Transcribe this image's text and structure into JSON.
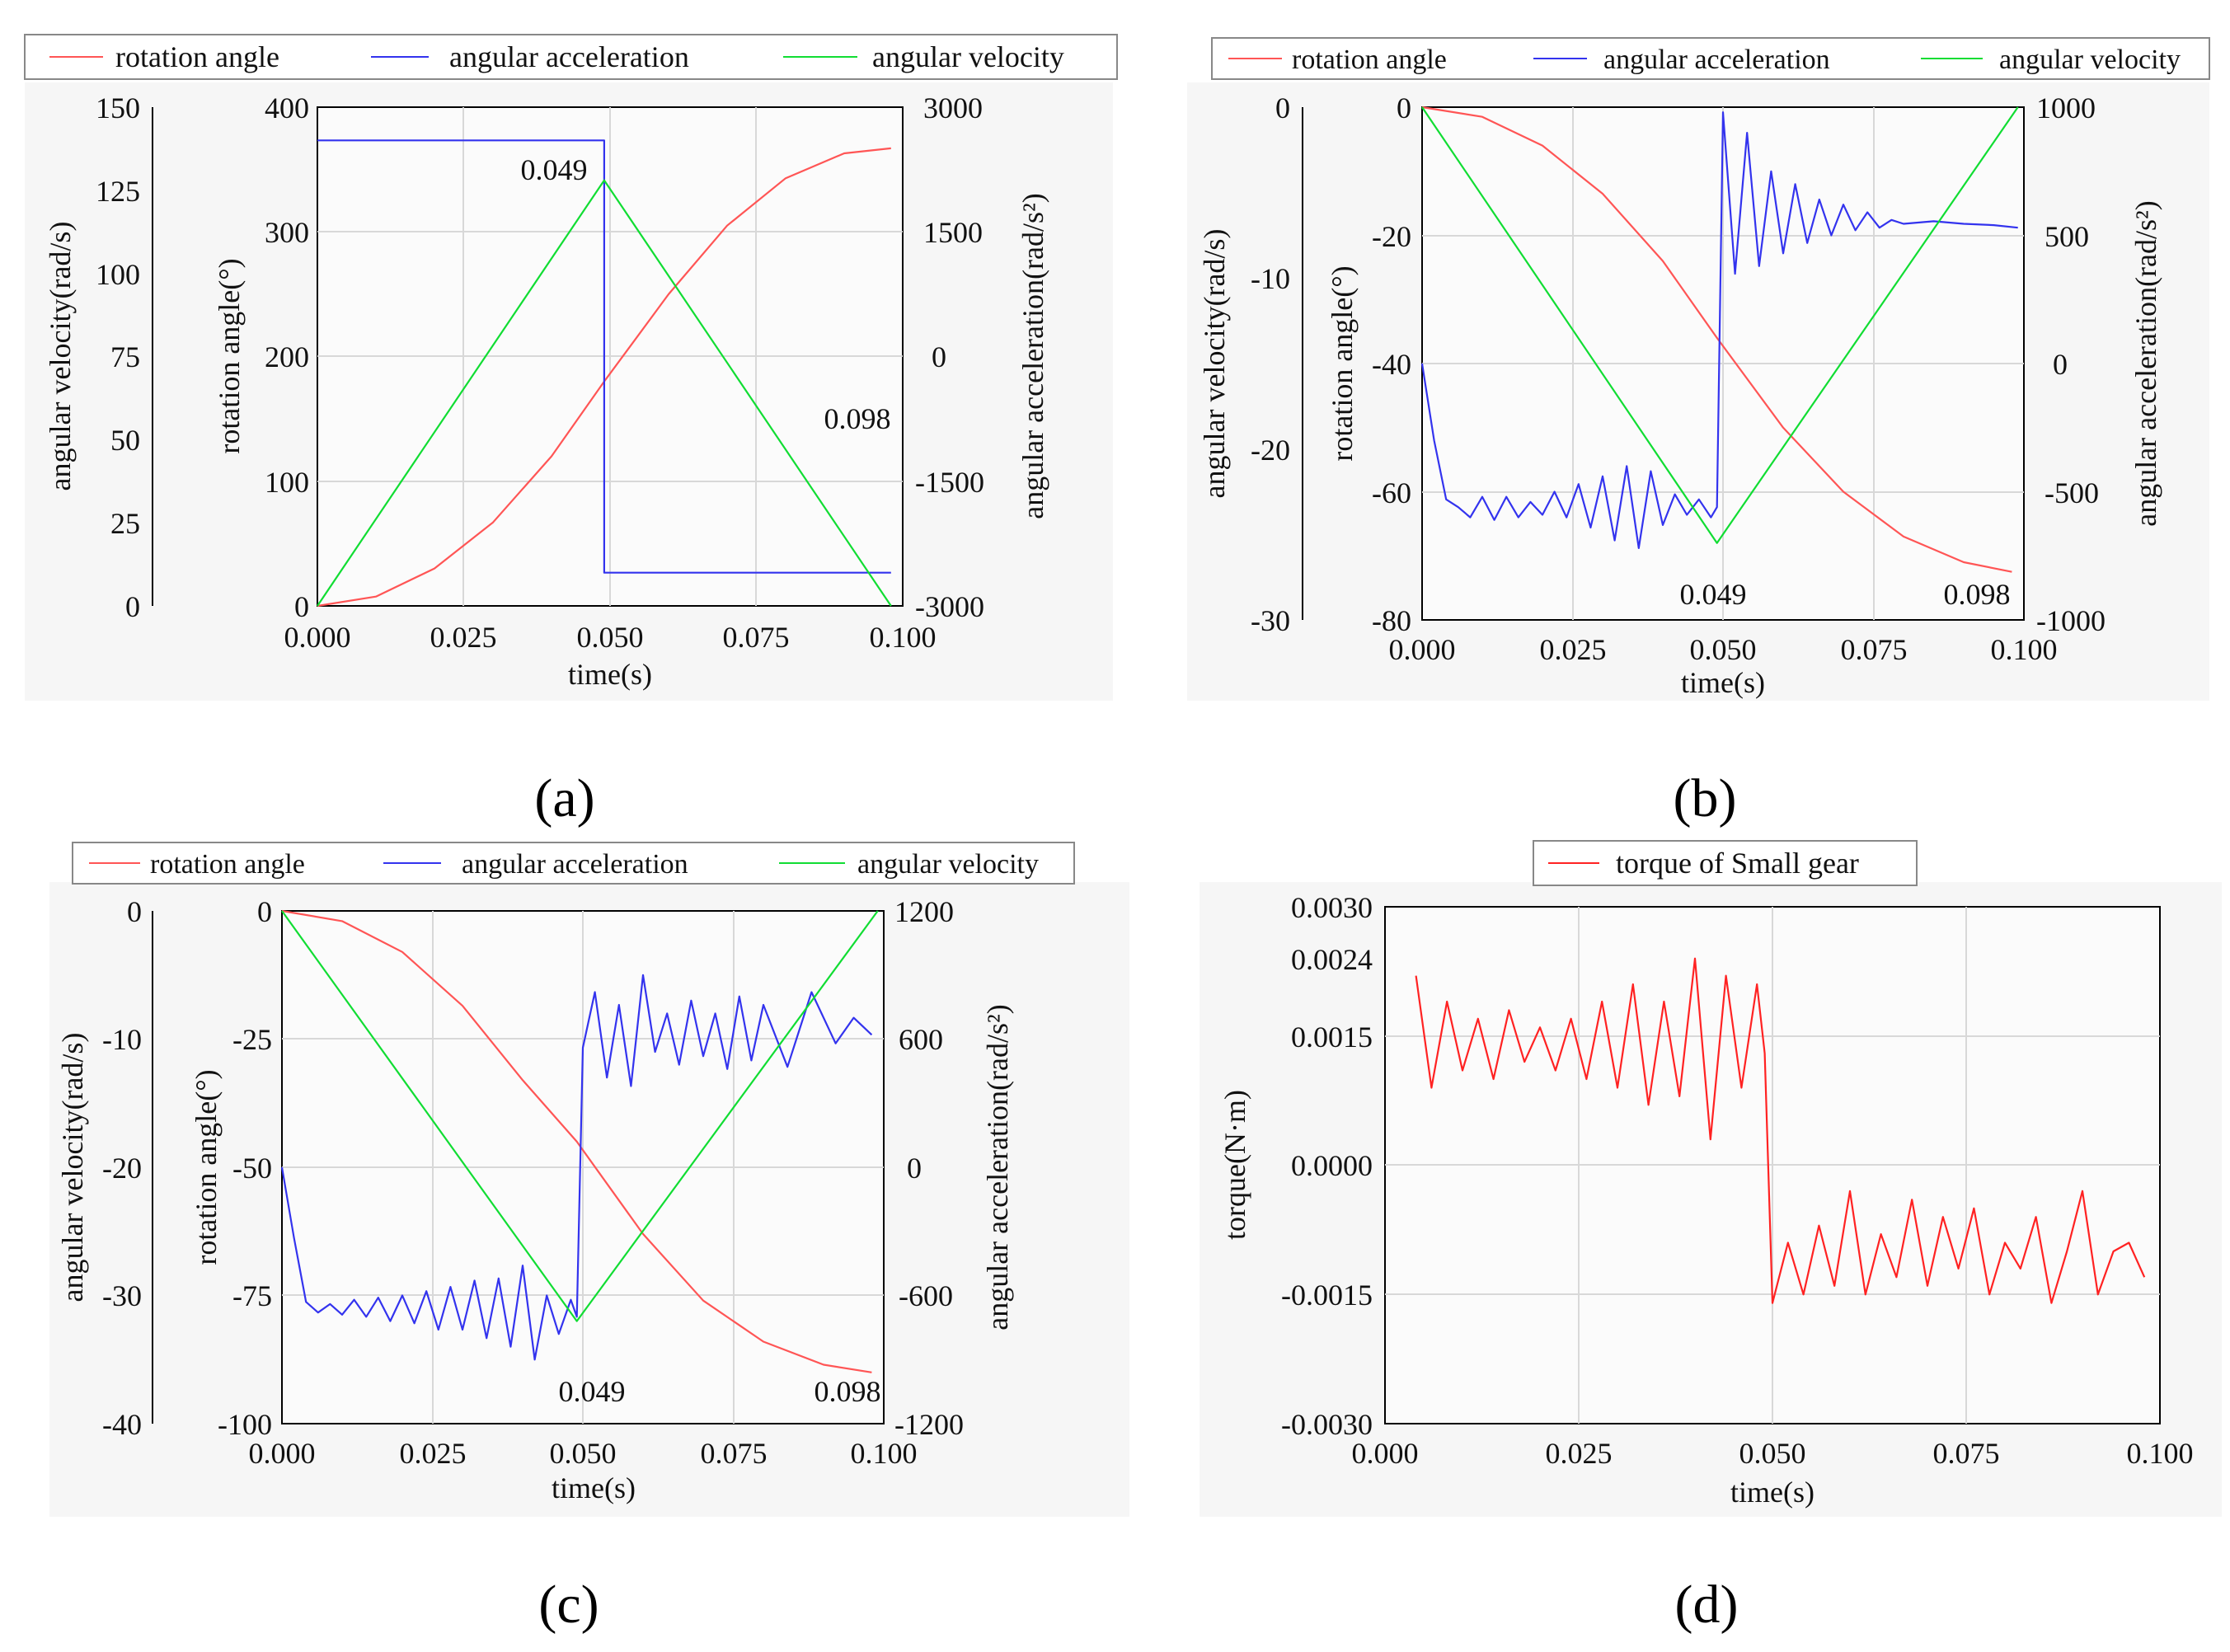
{
  "colors": {
    "rotation": "#ff5555",
    "acceleration": "#3333ee",
    "velocity": "#11dd33",
    "torque": "#ff2222",
    "grid": "#d8d8d8",
    "panel_bg": "#f6f6f6"
  },
  "chart_data": [
    {
      "id": "a",
      "type": "line",
      "panel_label": "(a)",
      "xlabel": "time(s)",
      "xlim": [
        0,
        0.1
      ],
      "xticks": [
        "0.000",
        "0.025",
        "0.050",
        "0.075",
        "0.100"
      ],
      "legend": [
        "rotation angle",
        "angular acceleration",
        "angular velocity"
      ],
      "axes": {
        "velocity": {
          "label": "angular velocity(rad/s)",
          "lim": [
            0,
            150
          ],
          "ticks": [
            "0",
            "25",
            "50",
            "75",
            "100",
            "125",
            "150"
          ]
        },
        "angle": {
          "label": "rotation angle(°)",
          "lim": [
            0,
            400
          ],
          "ticks": [
            "0",
            "100",
            "200",
            "300",
            "400"
          ]
        },
        "acceleration": {
          "label": "angular acceleration(rad/s²)",
          "lim": [
            -3000,
            3000
          ],
          "ticks": [
            "-3000",
            "-1500",
            "0",
            "1500",
            "3000"
          ]
        }
      },
      "annotations": [
        "0.049",
        "0.098"
      ],
      "series": [
        {
          "name": "rotation angle",
          "axis": "angle",
          "x": [
            0,
            0.01,
            0.02,
            0.03,
            0.04,
            0.049,
            0.06,
            0.07,
            0.08,
            0.09,
            0.098
          ],
          "values": [
            0,
            7.5,
            30,
            67,
            120,
            180,
            250,
            305,
            343,
            363,
            367
          ]
        },
        {
          "name": "angular acceleration",
          "axis": "acceleration",
          "x": [
            0,
            0.049,
            0.049,
            0.098
          ],
          "values": [
            2600,
            2600,
            -2600,
            -2600
          ]
        },
        {
          "name": "angular velocity",
          "axis": "velocity",
          "x": [
            0,
            0.049,
            0.098
          ],
          "values": [
            0,
            128,
            0
          ]
        }
      ]
    },
    {
      "id": "b",
      "type": "line",
      "panel_label": "(b)",
      "xlabel": "time(s)",
      "xlim": [
        0,
        0.1
      ],
      "xticks": [
        "0.000",
        "0.025",
        "0.050",
        "0.075",
        "0.100"
      ],
      "legend": [
        "rotation angle",
        "angular acceleration",
        "angular velocity"
      ],
      "axes": {
        "velocity": {
          "label": "angular velocity(rad/s)",
          "lim": [
            -30,
            0
          ],
          "ticks": [
            "-30",
            "-20",
            "-10",
            "0"
          ]
        },
        "angle": {
          "label": "rotation angle(°)",
          "lim": [
            -80,
            0
          ],
          "ticks": [
            "-80",
            "-60",
            "-40",
            "-20",
            "0"
          ]
        },
        "acceleration": {
          "label": "angular acceleration(rad/s²)",
          "lim": [
            -1000,
            1000
          ],
          "ticks": [
            "-1000",
            "-500",
            "0",
            "500",
            "1000"
          ]
        }
      },
      "annotations": [
        "0.049",
        "0.098"
      ],
      "series": [
        {
          "name": "rotation angle",
          "axis": "angle",
          "x": [
            0,
            0.01,
            0.02,
            0.03,
            0.04,
            0.049,
            0.06,
            0.07,
            0.08,
            0.09,
            0.098
          ],
          "values": [
            0,
            -1.5,
            -6,
            -13.5,
            -24,
            -36,
            -50,
            -60,
            -67,
            -71,
            -72.5
          ]
        },
        {
          "name": "angular acceleration",
          "axis": "acceleration",
          "x": [
            0,
            0.002,
            0.004,
            0.006,
            0.008,
            0.01,
            0.012,
            0.014,
            0.016,
            0.018,
            0.02,
            0.022,
            0.024,
            0.026,
            0.028,
            0.03,
            0.032,
            0.034,
            0.036,
            0.038,
            0.04,
            0.042,
            0.044,
            0.046,
            0.048,
            0.049,
            0.05,
            0.052,
            0.054,
            0.056,
            0.058,
            0.06,
            0.062,
            0.064,
            0.066,
            0.068,
            0.07,
            0.072,
            0.074,
            0.076,
            0.078,
            0.08,
            0.085,
            0.09,
            0.095,
            0.099
          ],
          "values": [
            0,
            -300,
            -530,
            -560,
            -600,
            -520,
            -610,
            -520,
            -600,
            -540,
            -590,
            -500,
            -600,
            -470,
            -640,
            -440,
            -690,
            -400,
            -720,
            -420,
            -630,
            -510,
            -590,
            -530,
            -600,
            -560,
            980,
            350,
            900,
            380,
            750,
            430,
            700,
            470,
            640,
            500,
            620,
            520,
            590,
            530,
            560,
            545,
            555,
            545,
            540,
            530
          ]
        },
        {
          "name": "angular velocity",
          "axis": "velocity",
          "x": [
            0,
            0.049,
            0.099
          ],
          "values": [
            0,
            -25.5,
            0
          ]
        }
      ]
    },
    {
      "id": "c",
      "type": "line",
      "panel_label": "(c)",
      "xlabel": "time(s)",
      "xlim": [
        0,
        0.1
      ],
      "xticks": [
        "0.000",
        "0.025",
        "0.050",
        "0.075",
        "0.100"
      ],
      "legend": [
        "rotation angle",
        "angular acceleration",
        "angular velocity"
      ],
      "axes": {
        "velocity": {
          "label": "angular velocity(rad/s)",
          "lim": [
            -40,
            0
          ],
          "ticks": [
            "-40",
            "-30",
            "-20",
            "-10",
            "0"
          ]
        },
        "angle": {
          "label": "rotation angle(°)",
          "lim": [
            -100,
            0
          ],
          "ticks": [
            "-100",
            "-75",
            "-50",
            "-25",
            "0"
          ]
        },
        "acceleration": {
          "label": "angular acceleration(rad/s²)",
          "lim": [
            -1200,
            1200
          ],
          "ticks": [
            "-1200",
            "-600",
            "0",
            "600",
            "1200"
          ]
        }
      },
      "annotations": [
        "0.049",
        "0.098"
      ],
      "series": [
        {
          "name": "rotation angle",
          "axis": "angle",
          "x": [
            0,
            0.01,
            0.02,
            0.03,
            0.04,
            0.049,
            0.06,
            0.07,
            0.08,
            0.09,
            0.098
          ],
          "values": [
            0,
            -2,
            -8,
            -18.5,
            -33,
            -45,
            -63,
            -76,
            -84,
            -88.5,
            -90
          ]
        },
        {
          "name": "angular acceleration",
          "axis": "acceleration",
          "x": [
            0,
            0.002,
            0.004,
            0.006,
            0.008,
            0.01,
            0.012,
            0.014,
            0.016,
            0.018,
            0.02,
            0.022,
            0.024,
            0.026,
            0.028,
            0.03,
            0.032,
            0.034,
            0.036,
            0.038,
            0.04,
            0.042,
            0.044,
            0.046,
            0.048,
            0.049,
            0.05,
            0.052,
            0.054,
            0.056,
            0.058,
            0.06,
            0.062,
            0.064,
            0.066,
            0.068,
            0.07,
            0.072,
            0.074,
            0.076,
            0.078,
            0.08,
            0.084,
            0.088,
            0.092,
            0.095,
            0.098
          ],
          "values": [
            0,
            -330,
            -630,
            -680,
            -640,
            -690,
            -620,
            -700,
            -610,
            -720,
            -600,
            -730,
            -580,
            -760,
            -560,
            -760,
            -530,
            -800,
            -520,
            -840,
            -460,
            -900,
            -600,
            -780,
            -620,
            -700,
            560,
            820,
            420,
            760,
            380,
            900,
            540,
            720,
            480,
            780,
            520,
            720,
            460,
            800,
            500,
            760,
            470,
            820,
            580,
            700,
            620
          ]
        },
        {
          "name": "angular velocity",
          "axis": "velocity",
          "x": [
            0,
            0.049,
            0.099
          ],
          "values": [
            0,
            -32,
            0
          ]
        }
      ]
    },
    {
      "id": "d",
      "type": "line",
      "panel_label": "(d)",
      "xlabel": "time(s)",
      "ylabel": "torque(N·m)",
      "xlim": [
        0,
        0.1
      ],
      "ylim": [
        -0.003,
        0.003
      ],
      "xticks": [
        "0.000",
        "0.025",
        "0.050",
        "0.075",
        "0.100"
      ],
      "yticks": [
        "-0.0030",
        "-0.0015",
        "0.0000",
        "0.0015",
        "0.0024",
        "0.0030"
      ],
      "legend": [
        "torque of Small gear"
      ],
      "series": [
        {
          "name": "torque of Small gear",
          "x": [
            0.004,
            0.006,
            0.008,
            0.01,
            0.012,
            0.014,
            0.016,
            0.018,
            0.02,
            0.022,
            0.024,
            0.026,
            0.028,
            0.03,
            0.032,
            0.034,
            0.036,
            0.038,
            0.04,
            0.042,
            0.044,
            0.046,
            0.048,
            0.049,
            0.05,
            0.052,
            0.054,
            0.056,
            0.058,
            0.06,
            0.062,
            0.064,
            0.066,
            0.068,
            0.07,
            0.072,
            0.074,
            0.076,
            0.078,
            0.08,
            0.082,
            0.084,
            0.086,
            0.088,
            0.09,
            0.092,
            0.094,
            0.096,
            0.098
          ],
          "values": [
            0.0022,
            0.0009,
            0.0019,
            0.0011,
            0.0017,
            0.001,
            0.0018,
            0.0012,
            0.0016,
            0.0011,
            0.0017,
            0.001,
            0.0019,
            0.0009,
            0.0021,
            0.0007,
            0.0019,
            0.0008,
            0.0024,
            0.0003,
            0.0022,
            0.0009,
            0.0021,
            0.0013,
            -0.0016,
            -0.0009,
            -0.0015,
            -0.0007,
            -0.0014,
            -0.0003,
            -0.0015,
            -0.0008,
            -0.0013,
            -0.0004,
            -0.0014,
            -0.0006,
            -0.0012,
            -0.0005,
            -0.0015,
            -0.0009,
            -0.0012,
            -0.0006,
            -0.0016,
            -0.001,
            -0.0003,
            -0.0015,
            -0.001,
            -0.0009,
            -0.0013
          ]
        }
      ]
    }
  ]
}
